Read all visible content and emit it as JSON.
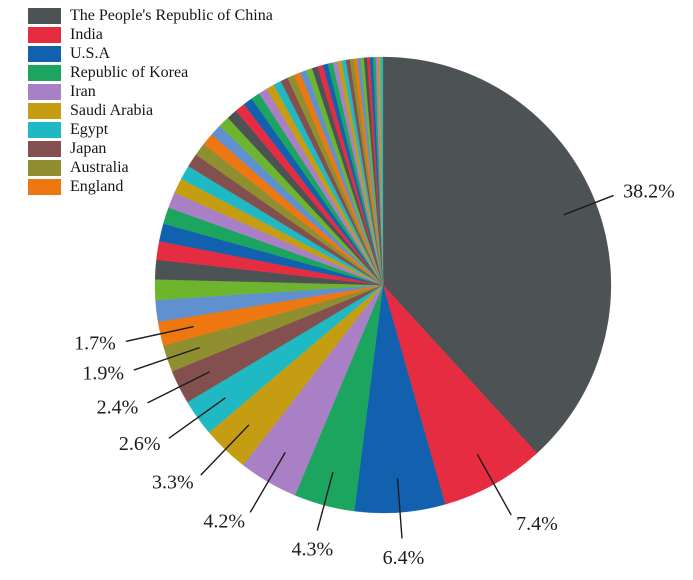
{
  "chart_data": {
    "type": "pie",
    "title": "",
    "legend_position": "top-left",
    "start_angle_deg_clockwise_from_top": 0,
    "direction": "clockwise",
    "grid": false,
    "palette": [
      "#4d5254",
      "#e62c41",
      "#1261af",
      "#1ca55f",
      "#a97fc5",
      "#c49d13",
      "#1fb9c4",
      "#84504f",
      "#8f8f30",
      "#ee7712",
      "#6090ce",
      "#6cb52d"
    ],
    "slices": [
      {
        "label": "The People's Republic of China",
        "value": 38.2,
        "pct_label": "38.2%",
        "color": "#4d5254",
        "label_r": 1.13
      },
      {
        "label": "India",
        "value": 7.4,
        "pct_label": "7.4%",
        "color": "#e62c41",
        "label_r": 1.2
      },
      {
        "label": "U.S.A",
        "value": 6.4,
        "pct_label": "6.4%",
        "color": "#1261af",
        "label_r": 1.2
      },
      {
        "label": "Republic of Korea",
        "value": 4.3,
        "pct_label": "4.3%",
        "color": "#1ca55f",
        "label_r": 1.2
      },
      {
        "label": "Iran",
        "value": 4.2,
        "pct_label": "4.2%",
        "color": "#a97fc5",
        "label_r": 1.2
      },
      {
        "label": "Saudi Arabia",
        "value": 3.3,
        "pct_label": "3.3%",
        "color": "#c49d13",
        "label_r": 1.2
      },
      {
        "label": "Egypt",
        "value": 2.6,
        "pct_label": "2.6%",
        "color": "#1fb9c4",
        "label_r": 1.2
      },
      {
        "label": "Japan",
        "value": 2.4,
        "pct_label": "2.4%",
        "color": "#84504f",
        "label_r": 1.2
      },
      {
        "label": "Australia",
        "value": 1.9,
        "pct_label": "1.9%",
        "color": "#8f8f30",
        "label_r": 1.2
      },
      {
        "label": "England",
        "value": 1.7,
        "pct_label": "1.7%",
        "color": "#ee7712",
        "label_r": 1.2
      }
    ],
    "unlabeled_slice_values_estimated": [
      1.53,
      1.45,
      1.38,
      1.31,
      1.25,
      1.18,
      1.12,
      1.07,
      1.02,
      0.96,
      0.92,
      0.87,
      0.83,
      0.79,
      0.75,
      0.71,
      0.67,
      0.64,
      0.61,
      0.58,
      0.55,
      0.52,
      0.5,
      0.47,
      0.45,
      0.42,
      0.4,
      0.38,
      0.36,
      0.35,
      0.33,
      0.31,
      0.3,
      0.28,
      0.27,
      0.25,
      0.24,
      0.23,
      0.22,
      0.21,
      0.2,
      0.19,
      0.18,
      0.17,
      0.16
    ],
    "unlabeled_color_cycle_start_index": 10,
    "leader_line_color": "#1c1c1c"
  }
}
